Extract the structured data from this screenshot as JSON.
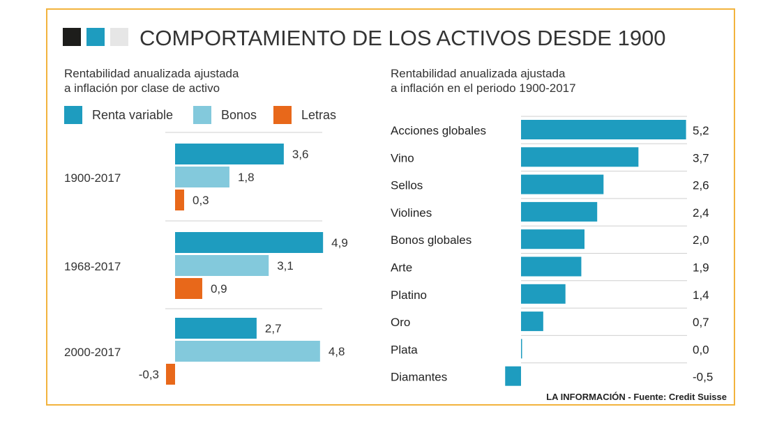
{
  "title": "COMPORTAMIENTO DE LOS ACTIVOS DESDE 1900",
  "source": "LA INFORMACIÓN - Fuente: Credit Suisse",
  "colors": {
    "dark": "#1d1d1b",
    "accent": "#1e9cbf",
    "light": "#e6e6e6",
    "renta": "#1e9cbf",
    "bonos": "#83c9dc",
    "letras": "#e8681a",
    "border": "#f2b33d"
  },
  "left_panel": {
    "subtitle_line1": "Rentabilidad anualizada ajustada",
    "subtitle_line2": "a inflación por clase de activo"
  },
  "right_panel": {
    "subtitle_line1": "Rentabilidad anualizada ajustada",
    "subtitle_line2": "a inflación en el periodo 1900-2017"
  },
  "chart_data": [
    {
      "type": "bar",
      "orientation": "horizontal",
      "categories": [
        "1900-2017",
        "1968-2017",
        "2000-2017"
      ],
      "series": [
        {
          "name": "Renta variable",
          "values": [
            3.6,
            4.9,
            2.7
          ],
          "labels": [
            "3,6",
            "4,9",
            "2,7"
          ]
        },
        {
          "name": "Bonos",
          "values": [
            1.8,
            3.1,
            4.8
          ],
          "labels": [
            "1,8",
            "3,1",
            "4,8"
          ]
        },
        {
          "name": "Letras",
          "values": [
            0.3,
            0.9,
            -0.3
          ],
          "labels": [
            "0,3",
            "0,9",
            "-0,3"
          ]
        }
      ],
      "legend": "top"
    },
    {
      "type": "bar",
      "orientation": "horizontal",
      "categories": [
        "Acciones globales",
        "Vino",
        "Sellos",
        "Violines",
        "Bonos globales",
        "Arte",
        "Platino",
        "Oro",
        "Plata",
        "Diamantes"
      ],
      "values": [
        5.2,
        3.7,
        2.6,
        2.4,
        2.0,
        1.9,
        1.4,
        0.7,
        0.0,
        -0.5
      ],
      "labels": [
        "5,2",
        "3,7",
        "2,6",
        "2,4",
        "2,0",
        "1,9",
        "1,4",
        "0,7",
        "0,0",
        "-0,5"
      ]
    }
  ]
}
